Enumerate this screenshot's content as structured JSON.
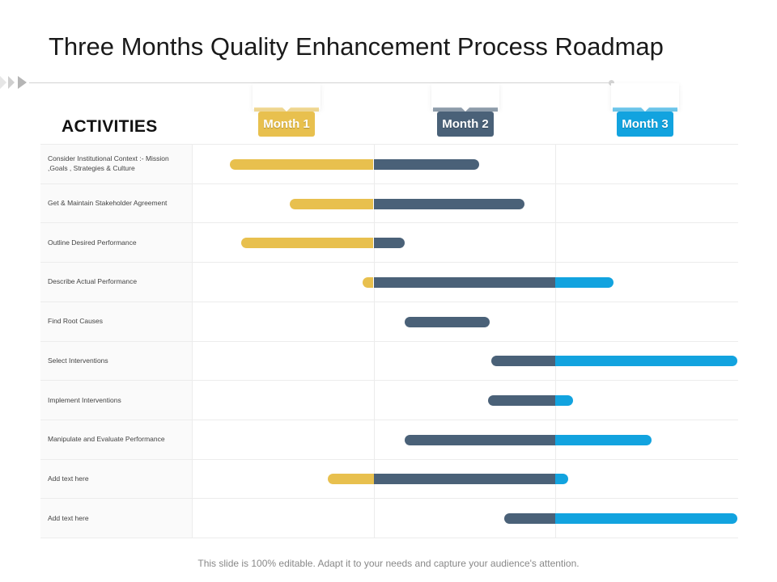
{
  "title": "Three Months Quality Enhancement Process Roadmap",
  "activities_heading": "ACTIVITIES",
  "months": [
    {
      "label": "Month 1",
      "color": "#e8c04e"
    },
    {
      "label": "Month 2",
      "color": "#4a6178"
    },
    {
      "label": "Month 3",
      "color": "#12a3df"
    }
  ],
  "activities": [
    {
      "label": "Consider Institutional Context :- Mission ,Goals , Strategies & Culture",
      "start_month": 0.21,
      "end_month": 1.58
    },
    {
      "label": "Get & Maintain Stakeholder Agreement",
      "start_month": 0.54,
      "end_month": 1.83
    },
    {
      "label": "Outline Desired Performance",
      "start_month": 0.27,
      "end_month": 1.17
    },
    {
      "label": "Describe Actual Performance",
      "start_month": 0.94,
      "end_month": 2.32
    },
    {
      "label": "Find Root Causes",
      "start_month": 1.17,
      "end_month": 1.64
    },
    {
      "label": "Select Interventions",
      "start_month": 1.65,
      "end_month": 3.0
    },
    {
      "label": "Implement Interventions",
      "start_month": 1.63,
      "end_month": 2.1
    },
    {
      "label": "Manipulate and Evaluate Performance",
      "start_month": 1.17,
      "end_month": 2.53
    },
    {
      "label": "Add text here",
      "start_month": 0.75,
      "end_month": 2.07
    },
    {
      "label": "Add text here",
      "start_month": 1.72,
      "end_month": 3.0
    }
  ],
  "footer": "This slide is 100% editable. Adapt it to your needs and capture your audience's attention."
}
